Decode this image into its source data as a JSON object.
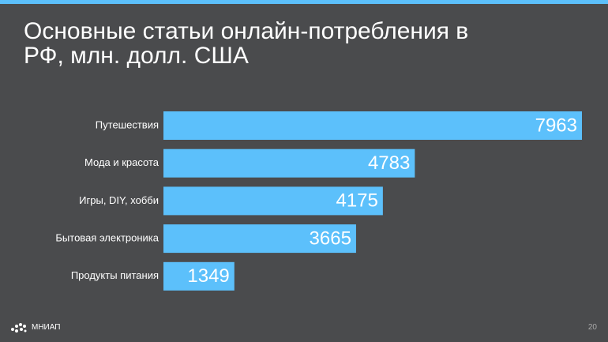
{
  "chart_data": {
    "type": "bar",
    "orientation": "horizontal",
    "title": "Основные статьи онлайн-потребления в РФ, млн. долл. США",
    "categories": [
      "Путешествия",
      "Мода и красота",
      "Игры, DIY, хобби",
      "Бытовая электроника",
      "Продукты питания"
    ],
    "values": [
      7963,
      4783,
      4175,
      3665,
      1349
    ],
    "color": "#5cc0fb"
  },
  "footer": {
    "logo": "МНИАП",
    "page_number": 20
  }
}
